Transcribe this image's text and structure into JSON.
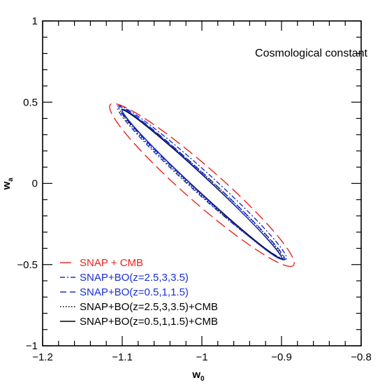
{
  "chart_data": {
    "type": "line",
    "annotation": "Cosmological constant",
    "xlabel": "w",
    "xlabel_sub": "0",
    "ylabel": "w",
    "ylabel_sub": "a",
    "xlim": [
      -1.2,
      -0.8
    ],
    "ylim": [
      -1,
      1
    ],
    "x_ticks": [
      -1.2,
      -1.1,
      -1,
      -0.9,
      -0.8
    ],
    "x_tick_labels": [
      "−1.2",
      "−1.1",
      "−1",
      "−0.9",
      "−0.8"
    ],
    "y_ticks": [
      -1,
      -0.5,
      0,
      0.5,
      1
    ],
    "y_tick_labels": [
      "−1",
      "−0.5",
      "0",
      "0.5",
      "1"
    ],
    "legend_position": "bottom-left",
    "series": [
      {
        "name": "SNAP + CMB",
        "color": "#e8231e",
        "dash": "16,7",
        "center": [
          -1.0,
          -0.01
        ],
        "tip": [
          -0.885,
          -0.505
        ],
        "half_width": 0.022
      },
      {
        "name": "SNAP+BO(z=2.5,3,3.5)",
        "color": "#1a2fd6",
        "dash": "7,3,2,3",
        "center": [
          -1.0,
          0.005
        ],
        "tip": [
          -0.894,
          -0.465
        ],
        "half_width": 0.0135
      },
      {
        "name": "SNAP+BO(z=0.5,1,1.5)",
        "color": "#1a2fd6",
        "dash": "9,5",
        "center": [
          -1.0,
          0.0
        ],
        "tip": [
          -0.896,
          -0.47
        ],
        "half_width": 0.0105
      },
      {
        "name": "SNAP+BO(z=2.5,3,3.5)+CMB",
        "color": "#000000",
        "dash": "1.5,2.5",
        "center": [
          -1.0,
          -0.005
        ],
        "tip": [
          -0.898,
          -0.465
        ],
        "half_width": 0.011
      },
      {
        "name": "SNAP+BO(z=0.5,1,1.5)+CMB",
        "color": "#000000",
        "dash": "",
        "center": [
          -1.0,
          -0.005
        ],
        "tip": [
          -0.9,
          -0.46
        ],
        "half_width": 0.009
      },
      {
        "name": "",
        "color": "#1a2fd6",
        "dash": "",
        "center": [
          -1.0,
          -0.005
        ],
        "tip": [
          -0.9,
          -0.465
        ],
        "half_width": 0.0095
      }
    ]
  }
}
